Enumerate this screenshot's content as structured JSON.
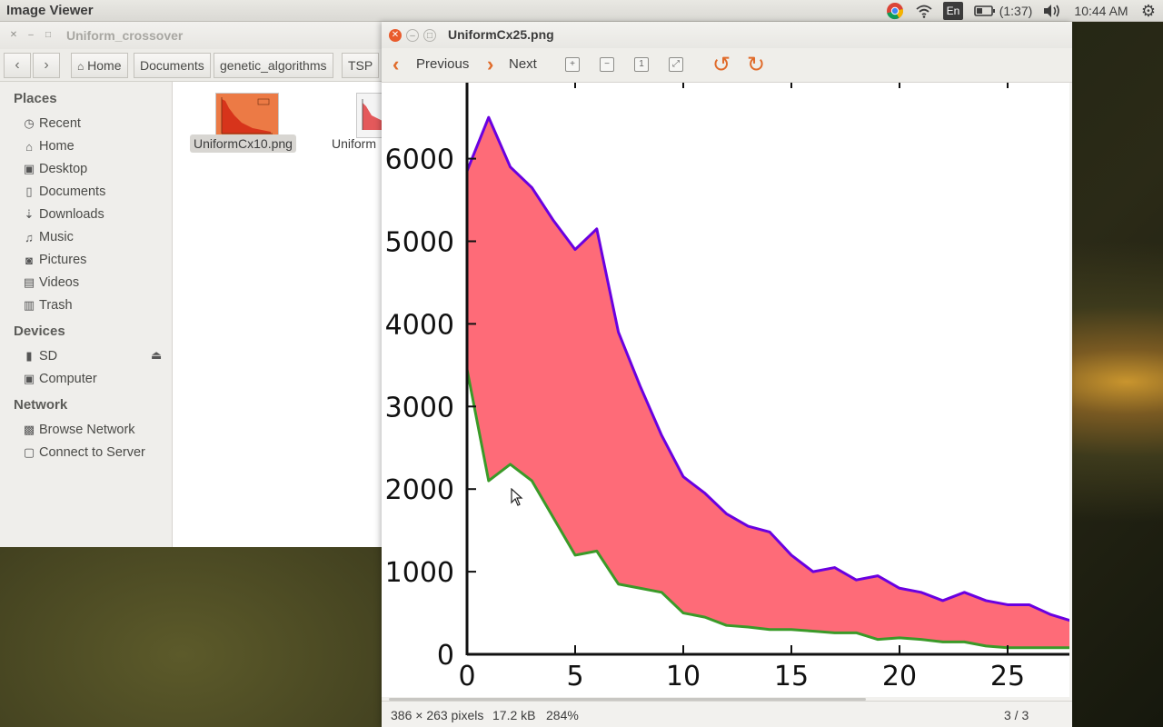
{
  "top_panel": {
    "app_title": "Image Viewer",
    "keyboard_layout": "En",
    "battery_time": "(1:37)",
    "clock": "10:44 AM"
  },
  "file_manager": {
    "window_title": "Uniform_crossover",
    "breadcrumbs": [
      "Home",
      "Documents",
      "genetic_algorithms",
      "TSP"
    ],
    "sidebar": {
      "places_heading": "Places",
      "places": [
        {
          "label": "Recent",
          "icon": "clock-icon"
        },
        {
          "label": "Home",
          "icon": "home-icon"
        },
        {
          "label": "Desktop",
          "icon": "folder-icon"
        },
        {
          "label": "Documents",
          "icon": "document-icon"
        },
        {
          "label": "Downloads",
          "icon": "download-icon"
        },
        {
          "label": "Music",
          "icon": "music-icon"
        },
        {
          "label": "Pictures",
          "icon": "camera-icon"
        },
        {
          "label": "Videos",
          "icon": "film-icon"
        },
        {
          "label": "Trash",
          "icon": "trash-icon"
        }
      ],
      "devices_heading": "Devices",
      "devices": [
        {
          "label": "SD",
          "icon": "sd-card-icon"
        },
        {
          "label": "Computer",
          "icon": "computer-icon"
        }
      ],
      "network_heading": "Network",
      "network": [
        {
          "label": "Browse Network",
          "icon": "network-icon"
        },
        {
          "label": "Connect to Server",
          "icon": "server-icon"
        }
      ]
    },
    "files": [
      {
        "name": "UniformCx10.png",
        "selected": true
      },
      {
        "name": "Uniform",
        "selected": false
      }
    ]
  },
  "image_viewer": {
    "window_title": "UniformCx25.png",
    "toolbar": {
      "previous_label": "Previous",
      "next_label": "Next"
    },
    "status": {
      "dimensions": "386 × 263 pixels",
      "file_size": "17.2 kB",
      "zoom": "284%",
      "position": "3 / 3"
    }
  },
  "chart_data": {
    "type": "area",
    "x": [
      0,
      1,
      2,
      3,
      4,
      5,
      6,
      7,
      8,
      9,
      10,
      11,
      12,
      13,
      14,
      15,
      16,
      17,
      18,
      19,
      20,
      21,
      22,
      23,
      24,
      25,
      26,
      27,
      28
    ],
    "series": [
      {
        "values": [
          5850,
          6500,
          5900,
          5650,
          5250,
          4900,
          5150,
          3900,
          3250,
          2650,
          2150,
          1950,
          1700,
          1550,
          1480,
          1200,
          1000,
          1050,
          900,
          950,
          800,
          750,
          650,
          750,
          650,
          600,
          600,
          480,
          400
        ],
        "color": "#6a00e0"
      },
      {
        "values": [
          3450,
          2100,
          2300,
          2100,
          1650,
          1200,
          1250,
          850,
          800,
          750,
          500,
          450,
          350,
          330,
          300,
          300,
          280,
          260,
          260,
          180,
          200,
          180,
          150,
          150,
          100,
          80,
          80,
          80,
          80
        ],
        "color": "#3a9a28"
      }
    ],
    "fill_color": "#fe6b78",
    "y_ticks": [
      "0",
      "1000",
      "2000",
      "3000",
      "4000",
      "5000",
      "6000"
    ],
    "x_ticks": [
      "0",
      "5",
      "10",
      "15",
      "20",
      "25"
    ]
  }
}
